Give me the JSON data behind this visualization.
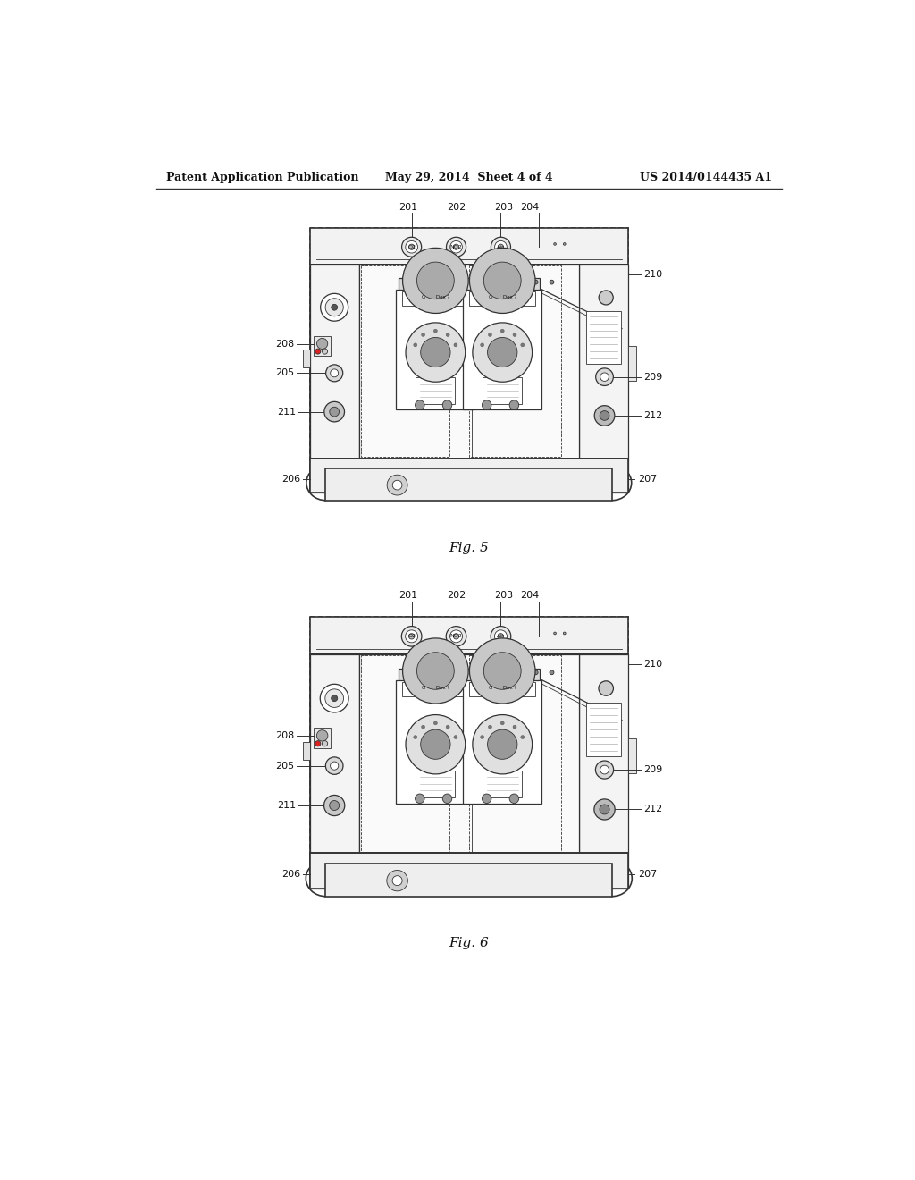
{
  "background_color": "#ffffff",
  "header_left": "Patent Application Publication",
  "header_middle": "May 29, 2014  Sheet 4 of 4",
  "header_right": "US 2014/0144435 A1",
  "fig5_label": "Fig. 5",
  "fig6_label": "Fig. 6",
  "text_color": "#111111",
  "line_color": "#333333"
}
